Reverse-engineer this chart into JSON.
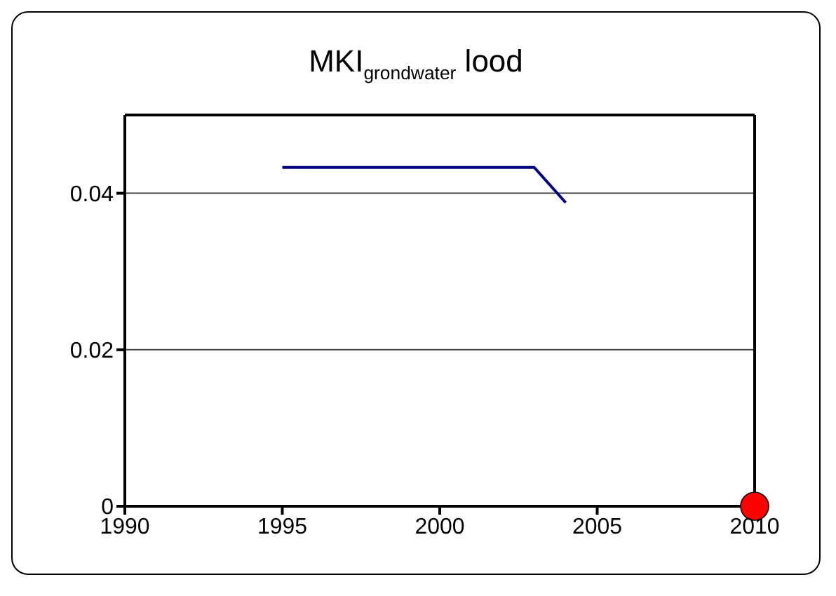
{
  "chart_data": {
    "type": "line",
    "title": "MKI$_{grondwater}$ lood",
    "xlim": [
      1990,
      2010
    ],
    "xticks": [
      1990,
      1995,
      2000,
      2005,
      2010
    ],
    "ylim": [
      0,
      0.05
    ],
    "yticks": [
      0,
      0.02,
      0.04
    ],
    "grid": "y",
    "series": [
      {
        "color": "#000080",
        "marker": "none",
        "x": [
          1995,
          1996,
          1997,
          1998,
          1999,
          2000,
          2001,
          2002,
          2003,
          2004
        ],
        "values": [
          0.0433,
          0.0433,
          0.0433,
          0.0433,
          0.0433,
          0.0433,
          0.0433,
          0.0433,
          0.0433,
          0.0388
        ]
      },
      {
        "type": "scatter",
        "color": "#ff0000",
        "marker": "circle",
        "x": [
          2010
        ],
        "values": [
          0
        ]
      }
    ]
  }
}
